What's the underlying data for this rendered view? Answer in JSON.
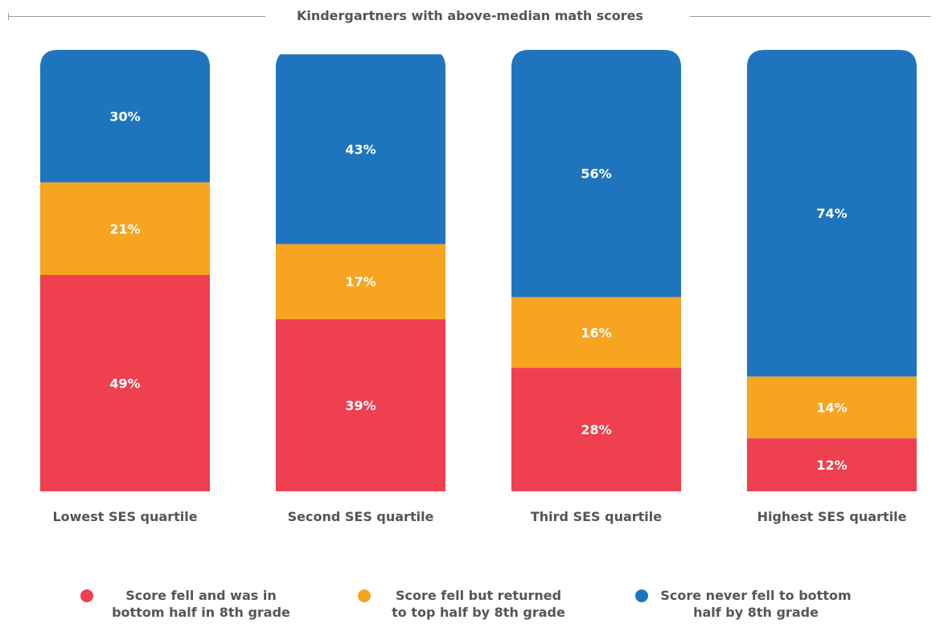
{
  "chart_data": {
    "type": "bar",
    "stacked": true,
    "title": "Kindergartners with above-median math scores",
    "xlabel": "",
    "ylabel": "",
    "ylim": [
      0,
      100
    ],
    "grid": false,
    "legend_position": "bottom",
    "categories": [
      "Lowest SES quartile",
      "Second SES quartile",
      "Third SES quartile",
      "Highest SES quartile"
    ],
    "series": [
      {
        "name": "Score fell and was in bottom half in 8th grade",
        "values": [
          49,
          39,
          28,
          12
        ],
        "labels": [
          "49%",
          "39%",
          "28%",
          "12%"
        ],
        "color": "#ef4050"
      },
      {
        "name": "Score fell but returned to top half by 8th grade",
        "values": [
          21,
          17,
          16,
          14
        ],
        "labels": [
          "21%",
          "17%",
          "16%",
          "14%"
        ],
        "color": "#f7a421"
      },
      {
        "name": "Score never fell to bottom half by 8th grade",
        "values": [
          30,
          43,
          56,
          74
        ],
        "labels": [
          "30%",
          "43%",
          "56%",
          "74%"
        ],
        "color": "#1f75bd"
      }
    ],
    "legend": [
      {
        "line1": "Score fell and was in",
        "line2": "bottom half in 8th grade",
        "color": "#ef4050"
      },
      {
        "line1": "Score fell but returned",
        "line2": "to top half by 8th grade",
        "color": "#f7a421"
      },
      {
        "line1": "Score never fell to bottom",
        "line2": "half by 8th grade",
        "color": "#1f75bd"
      }
    ]
  }
}
